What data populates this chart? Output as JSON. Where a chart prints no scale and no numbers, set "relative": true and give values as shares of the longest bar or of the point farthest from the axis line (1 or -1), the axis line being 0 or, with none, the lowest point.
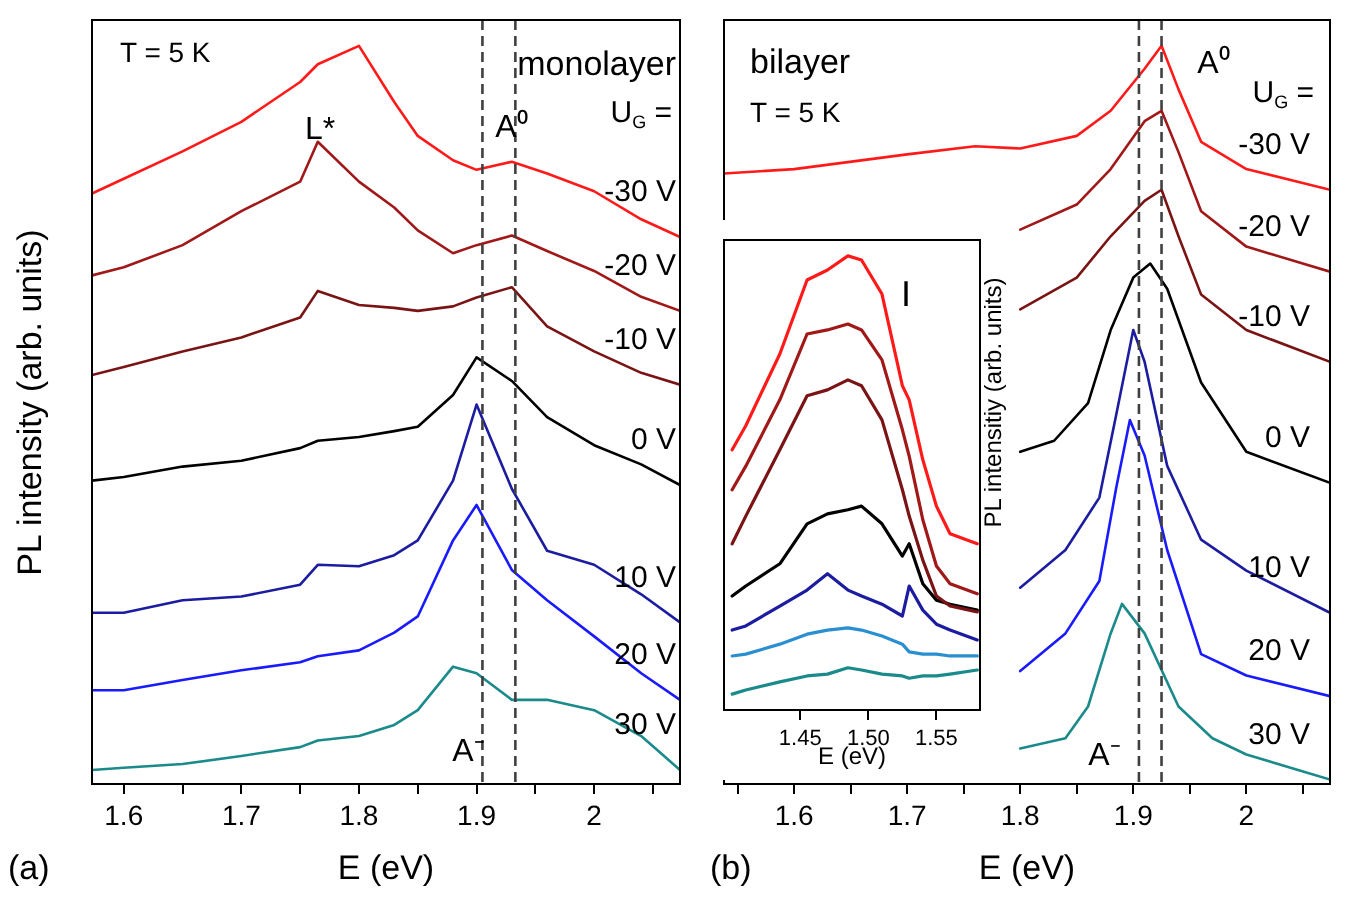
{
  "chart_data": [
    {
      "type": "line",
      "relative": true,
      "xlabel": "E (eV)",
      "ylabel": "PL intensity (arb. units)",
      "xlim": [
        1.573,
        2.073
      ],
      "xticks": [
        1.6,
        {
          "value": 1.65,
          "label": null
        },
        1.7,
        {
          "value": 1.75,
          "label": null
        },
        1.8,
        {
          "value": 1.85,
          "label": null
        },
        1.9,
        {
          "value": 1.95,
          "label": null
        },
        2.0,
        {
          "value": 2.05,
          "label": null
        }
      ],
      "tick_labels": "x",
      "legend": false,
      "marker": "none",
      "x": [
        1.573,
        1.6,
        1.65,
        1.7,
        1.75,
        1.765,
        1.8,
        1.83,
        1.85,
        1.88,
        1.9,
        1.93,
        1.96,
        2.0,
        2.04,
        2.073
      ],
      "series": [
        {
          "name": "-30 V",
          "color": "#ff1a1a",
          "values": [
            0.8,
            0.82,
            0.857,
            0.897,
            0.951,
            0.975,
            1,
            0.924,
            0.878,
            0.845,
            0.832,
            0.843,
            0.827,
            0.803,
            0.765,
            0.741
          ]
        },
        {
          "name": "-20 V",
          "color": "#a01818",
          "values": [
            0.689,
            0.7,
            0.73,
            0.776,
            0.816,
            0.87,
            0.816,
            0.781,
            0.75,
            0.719,
            0.73,
            0.743,
            0.722,
            0.695,
            0.66,
            0.641
          ]
        },
        {
          "name": "-10 V",
          "color": "#7a1414",
          "values": [
            0.554,
            0.565,
            0.586,
            0.605,
            0.632,
            0.668,
            0.649,
            0.645,
            0.641,
            0.647,
            0.659,
            0.673,
            0.62,
            0.586,
            0.557,
            0.541
          ]
        },
        {
          "name": "0 V",
          "color": "#000000",
          "values": [
            0.411,
            0.416,
            0.43,
            0.438,
            0.455,
            0.465,
            0.47,
            0.478,
            0.484,
            0.527,
            0.578,
            0.546,
            0.497,
            0.459,
            0.433,
            0.405
          ]
        },
        {
          "name": "10 V",
          "color": "#1c1ca0",
          "values": [
            0.232,
            0.232,
            0.249,
            0.254,
            0.27,
            0.297,
            0.295,
            0.31,
            0.33,
            0.411,
            0.514,
            0.4,
            0.316,
            0.297,
            0.257,
            0.219
          ]
        },
        {
          "name": "20 V",
          "color": "#1a1aff",
          "values": [
            0.127,
            0.127,
            0.141,
            0.154,
            0.165,
            0.173,
            0.181,
            0.205,
            0.227,
            0.33,
            0.378,
            0.29,
            0.249,
            0.2,
            0.15,
            0.114
          ]
        },
        {
          "name": "30 V",
          "color": "#1a8a8a",
          "values": [
            0.019,
            0.022,
            0.027,
            0.038,
            0.05,
            0.059,
            0.065,
            0.08,
            0.1,
            0.159,
            0.15,
            0.114,
            0.114,
            0.1,
            0.065,
            0.019
          ]
        }
      ],
      "ref_lines": [
        {
          "axis": "x",
          "value": 1.905,
          "color": "#404040",
          "line_style": "dashed"
        },
        {
          "axis": "x",
          "value": 1.933,
          "color": "#404040",
          "line_style": "dashed"
        }
      ],
      "annotations": [
        "T = 5 K",
        "monolayer",
        "U$_{G}$ =",
        "(a)",
        "L*",
        "A⁰",
        "A⁻"
      ]
    },
    {
      "type": "line",
      "relative": true,
      "xlabel": "E (eV)",
      "ylabel": "PL intensitiy (arb. units)",
      "xlim": [
        1.538,
        2.074
      ],
      "xticks": [
        {
          "value": 1.55,
          "label": null
        },
        1.6,
        {
          "value": 1.65,
          "label": null
        },
        1.7,
        {
          "value": 1.75,
          "label": null
        },
        1.8,
        {
          "value": 1.85,
          "label": null
        },
        1.9,
        {
          "value": 1.95,
          "label": null
        },
        2.0,
        {
          "value": 2.05,
          "label": null
        }
      ],
      "tick_labels": "x",
      "legend": false,
      "marker": "none",
      "series": [
        {
          "name": "-30 V",
          "color": "#ff1a1a",
          "x": [
            1.538,
            1.6,
            1.7,
            1.76,
            1.8,
            1.85,
            1.88,
            1.91,
            1.925,
            1.94,
            1.96,
            2.0,
            2.074
          ],
          "values": [
            0.827,
            0.833,
            0.853,
            0.864,
            0.861,
            0.878,
            0.912,
            0.969,
            1,
            0.941,
            0.87,
            0.833,
            0.805
          ]
        },
        {
          "name": "-20 V",
          "color": "#a01818",
          "x": [
            1.8,
            1.85,
            1.88,
            1.91,
            1.925,
            1.94,
            1.96,
            2.0,
            2.074
          ],
          "values": [
            0.751,
            0.785,
            0.833,
            0.898,
            0.912,
            0.856,
            0.776,
            0.728,
            0.694
          ]
        },
        {
          "name": "-10 V",
          "color": "#7a1414",
          "x": [
            1.8,
            1.85,
            1.88,
            1.91,
            1.925,
            1.94,
            1.96,
            2.0,
            2.074
          ],
          "values": [
            0.643,
            0.686,
            0.742,
            0.79,
            0.805,
            0.742,
            0.663,
            0.615,
            0.572
          ]
        },
        {
          "name": "0 V",
          "color": "#000000",
          "x": [
            1.8,
            1.83,
            1.86,
            1.88,
            1.9,
            1.915,
            1.93,
            1.96,
            2.0,
            2.074
          ],
          "values": [
            0.45,
            0.465,
            0.516,
            0.615,
            0.686,
            0.705,
            0.671,
            0.544,
            0.45,
            0.408
          ]
        },
        {
          "name": "10 V",
          "color": "#1c1ca0",
          "x": [
            1.8,
            1.84,
            1.87,
            1.885,
            1.9,
            1.91,
            1.93,
            1.96,
            2.0,
            2.074
          ],
          "values": [
            0.266,
            0.317,
            0.388,
            0.501,
            0.615,
            0.572,
            0.431,
            0.331,
            0.289,
            0.232
          ]
        },
        {
          "name": "20 V",
          "color": "#1a1aff",
          "x": [
            1.8,
            1.84,
            1.87,
            1.885,
            1.897,
            1.91,
            1.93,
            1.96,
            2.0,
            2.074
          ],
          "values": [
            0.153,
            0.204,
            0.275,
            0.402,
            0.493,
            0.445,
            0.317,
            0.176,
            0.147,
            0.119
          ]
        },
        {
          "name": "30 V",
          "color": "#1a8a8a",
          "x": [
            1.8,
            1.84,
            1.86,
            1.88,
            1.89,
            1.91,
            1.94,
            1.97,
            2.0,
            2.074
          ],
          "values": [
            0.048,
            0.062,
            0.105,
            0.204,
            0.244,
            0.204,
            0.105,
            0.062,
            0.04,
            0.006
          ]
        }
      ],
      "ref_lines": [
        {
          "axis": "x",
          "value": 1.905,
          "color": "#404040",
          "line_style": "dashed"
        },
        {
          "axis": "x",
          "value": 1.925,
          "color": "#404040",
          "line_style": "dashed"
        }
      ],
      "annotations": [
        "bilayer",
        "T = 5 K",
        "U$_{G}$ =",
        "(b)",
        "A⁰",
        "A⁻"
      ]
    },
    {
      "type": "line",
      "relative": true,
      "xlabel": "E (eV)",
      "xlim": [
        1.394,
        1.582
      ],
      "xticks": [
        1.45,
        {
          "value": 1.5,
          "label": "1.50"
        },
        1.55
      ],
      "tick_labels": "x",
      "legend": false,
      "marker": "none",
      "x": [
        1.4,
        1.41,
        1.435,
        1.455,
        1.47,
        1.485,
        1.495,
        1.51,
        1.525,
        1.53,
        1.54,
        1.55,
        1.56,
        1.58
      ],
      "series": [
        {
          "color": "#ff1a1a",
          "values": [
            0.573,
            0.626,
            0.784,
            0.947,
            0.969,
            1,
            0.991,
            0.916,
            0.714,
            0.683,
            0.551,
            0.449,
            0.388,
            0.366
          ]
        },
        {
          "color": "#a01818",
          "values": [
            0.485,
            0.537,
            0.683,
            0.828,
            0.837,
            0.85,
            0.837,
            0.771,
            0.617,
            0.559,
            0.419,
            0.317,
            0.278,
            0.256
          ]
        },
        {
          "color": "#7a1414",
          "values": [
            0.366,
            0.427,
            0.573,
            0.692,
            0.705,
            0.727,
            0.714,
            0.639,
            0.485,
            0.427,
            0.33,
            0.251,
            0.229,
            0.216
          ]
        },
        {
          "color": "#000000",
          "values": [
            0.251,
            0.273,
            0.322,
            0.41,
            0.432,
            0.441,
            0.449,
            0.41,
            0.339,
            0.366,
            0.278,
            0.242,
            0.233,
            0.22
          ]
        },
        {
          "color": "#1c1ca0",
          "values": [
            0.176,
            0.185,
            0.229,
            0.264,
            0.3,
            0.264,
            0.251,
            0.233,
            0.207,
            0.273,
            0.22,
            0.189,
            0.176,
            0.154
          ]
        },
        {
          "color": "#2a8fd0",
          "values": [
            0.119,
            0.123,
            0.145,
            0.167,
            0.176,
            0.181,
            0.176,
            0.163,
            0.145,
            0.128,
            0.123,
            0.123,
            0.119,
            0.119
          ]
        },
        {
          "color": "#1a8a8a",
          "values": [
            0.035,
            0.044,
            0.062,
            0.075,
            0.079,
            0.093,
            0.088,
            0.079,
            0.075,
            0.07,
            0.075,
            0.075,
            0.079,
            0.088
          ]
        }
      ],
      "annotations": [
        "I"
      ]
    }
  ]
}
